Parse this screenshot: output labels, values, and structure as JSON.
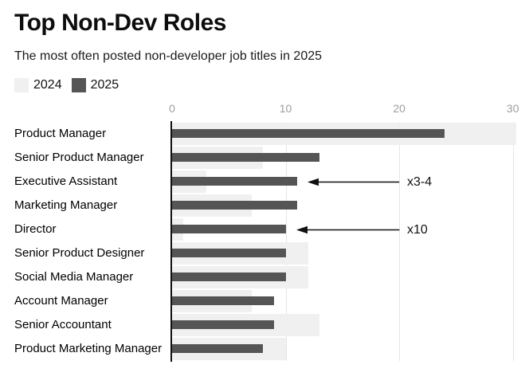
{
  "header": {
    "title": "Top Non-Dev Roles",
    "subtitle": "The most often posted non-developer job titles in 2025"
  },
  "legend": {
    "items": [
      {
        "label": "2024",
        "color": "#f0f0f0"
      },
      {
        "label": "2025",
        "color": "#555555"
      }
    ]
  },
  "colors": {
    "bar_2024": "#f0f0f0",
    "bar_2025": "#555555",
    "gridline": "#e5e5e5",
    "axis_line": "#111111",
    "tick_text": "#9e9e9e",
    "annotation": "#111111"
  },
  "chart_data": {
    "type": "bar",
    "orientation": "horizontal",
    "title": "Top Non-Dev Roles",
    "subtitle": "The most often posted non-developer job titles in 2025",
    "xlabel": "",
    "ylabel": "",
    "grid": true,
    "legend_position": "top-left",
    "x_axis": {
      "ticks": [
        0,
        10,
        20,
        30
      ],
      "min": 0,
      "max": 30.3
    },
    "categories": [
      "Product Manager",
      "Senior Product Manager",
      "Executive Assistant",
      "Marketing Manager",
      "Director",
      "Senior Product Designer",
      "Social Media Manager",
      "Account Manager",
      "Senior Accountant",
      "Product Marketing Manager"
    ],
    "series": [
      {
        "name": "2024",
        "color": "#f0f0f0",
        "values": [
          31,
          8,
          3,
          7,
          1,
          12,
          12,
          7,
          13,
          10
        ]
      },
      {
        "name": "2025",
        "color": "#555555",
        "values": [
          24,
          13,
          11,
          11,
          10,
          10,
          10,
          9,
          9,
          8
        ]
      }
    ],
    "annotations": [
      {
        "text": "x3-4",
        "category": "Executive Assistant",
        "series": "2025"
      },
      {
        "text": "x10",
        "category": "Director",
        "series": "2025"
      }
    ]
  }
}
